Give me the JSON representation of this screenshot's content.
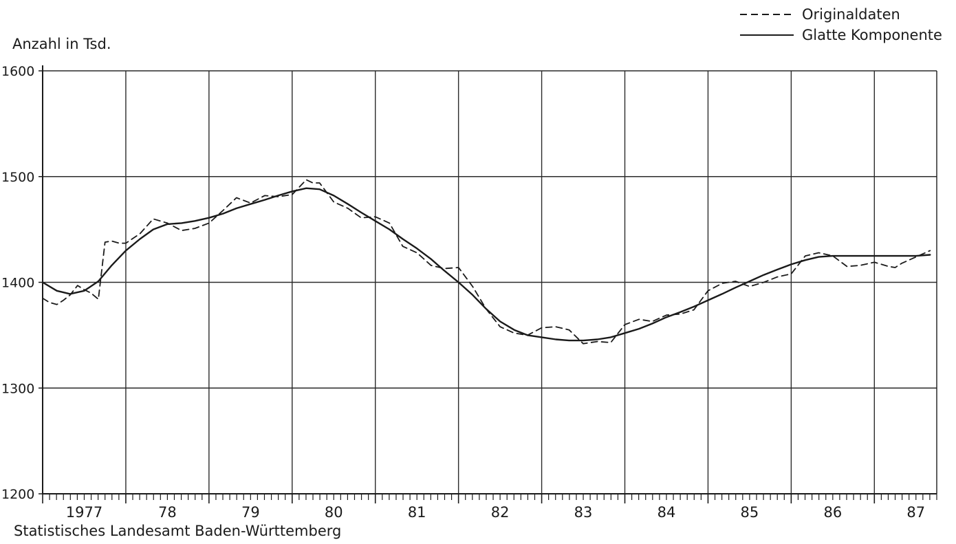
{
  "chart_data": {
    "type": "line",
    "ylabel": "Anzahl in Tsd.",
    "source": "Statistisches Landesamt Baden-Württemberg",
    "ylim": [
      1200,
      1600
    ],
    "yticks": [
      "1600",
      "1500",
      "1400",
      "1300",
      "1200"
    ],
    "xlim": [
      1977.0,
      1987.75
    ],
    "xticks": [
      "1977",
      "78",
      "79",
      "80",
      "81",
      "82",
      "83",
      "84",
      "85",
      "86",
      "87"
    ],
    "grid": true,
    "legend_position": "top-right",
    "series": [
      {
        "name": "Originaldaten",
        "style": "dashed",
        "x": [
          1977.0,
          1977.08,
          1977.17,
          1977.25,
          1977.33,
          1977.42,
          1977.5,
          1977.58,
          1977.67,
          1977.75,
          1977.83,
          1977.92,
          1978.0,
          1978.17,
          1978.33,
          1978.5,
          1978.67,
          1978.83,
          1979.0,
          1979.17,
          1979.33,
          1979.5,
          1979.67,
          1979.83,
          1980.0,
          1980.17,
          1980.25,
          1980.33,
          1980.5,
          1980.67,
          1980.83,
          1981.0,
          1981.17,
          1981.33,
          1981.5,
          1981.67,
          1981.83,
          1982.0,
          1982.17,
          1982.33,
          1982.5,
          1982.67,
          1982.83,
          1983.0,
          1983.17,
          1983.33,
          1983.5,
          1983.67,
          1983.83,
          1984.0,
          1984.17,
          1984.33,
          1984.5,
          1984.67,
          1984.83,
          1985.0,
          1985.17,
          1985.33,
          1985.5,
          1985.67,
          1985.83,
          1986.0,
          1986.17,
          1986.33,
          1986.5,
          1986.67,
          1986.83,
          1987.0,
          1987.17,
          1987.25,
          1987.33,
          1987.5,
          1987.67
        ],
        "y": [
          1385,
          1381,
          1379,
          1383,
          1388,
          1397,
          1393,
          1390,
          1384,
          1438,
          1439,
          1437,
          1437,
          1446,
          1460,
          1456,
          1449,
          1451,
          1456,
          1468,
          1480,
          1475,
          1482,
          1481,
          1483,
          1497,
          1494,
          1494,
          1476,
          1470,
          1461,
          1462,
          1456,
          1434,
          1428,
          1416,
          1413,
          1414,
          1396,
          1375,
          1358,
          1352,
          1350,
          1357,
          1358,
          1355,
          1342,
          1344,
          1343,
          1360,
          1365,
          1363,
          1369,
          1370,
          1374,
          1392,
          1399,
          1401,
          1396,
          1400,
          1405,
          1408,
          1425,
          1428,
          1425,
          1415,
          1416,
          1419,
          1415,
          1414,
          1418,
          1424,
          1430
        ]
      },
      {
        "name": "Glatte Komponente",
        "style": "solid",
        "x": [
          1977.0,
          1977.17,
          1977.33,
          1977.5,
          1977.67,
          1977.83,
          1978.0,
          1978.17,
          1978.33,
          1978.5,
          1978.67,
          1978.83,
          1979.0,
          1979.17,
          1979.33,
          1979.5,
          1979.67,
          1979.83,
          1980.0,
          1980.17,
          1980.33,
          1980.5,
          1980.67,
          1980.83,
          1981.0,
          1981.17,
          1981.33,
          1981.5,
          1981.67,
          1981.83,
          1982.0,
          1982.17,
          1982.33,
          1982.5,
          1982.67,
          1982.83,
          1983.0,
          1983.17,
          1983.33,
          1983.5,
          1983.67,
          1983.83,
          1984.0,
          1984.17,
          1984.33,
          1984.5,
          1984.67,
          1984.83,
          1985.0,
          1985.17,
          1985.33,
          1985.5,
          1985.67,
          1985.83,
          1986.0,
          1986.17,
          1986.33,
          1986.5,
          1986.67,
          1986.83,
          1987.0,
          1987.17,
          1987.33,
          1987.5,
          1987.67
        ],
        "y": [
          1400,
          1392,
          1389,
          1392,
          1401,
          1416,
          1430,
          1441,
          1450,
          1455,
          1456,
          1458,
          1461,
          1465,
          1470,
          1474,
          1478,
          1482,
          1486,
          1489,
          1488,
          1482,
          1474,
          1466,
          1458,
          1450,
          1441,
          1432,
          1422,
          1411,
          1400,
          1388,
          1375,
          1363,
          1355,
          1350,
          1348,
          1346,
          1345,
          1345,
          1346,
          1348,
          1352,
          1356,
          1361,
          1367,
          1372,
          1377,
          1383,
          1389,
          1395,
          1401,
          1407,
          1412,
          1417,
          1421,
          1424,
          1425,
          1425,
          1425,
          1425,
          1425,
          1425,
          1425,
          1426
        ]
      }
    ]
  }
}
